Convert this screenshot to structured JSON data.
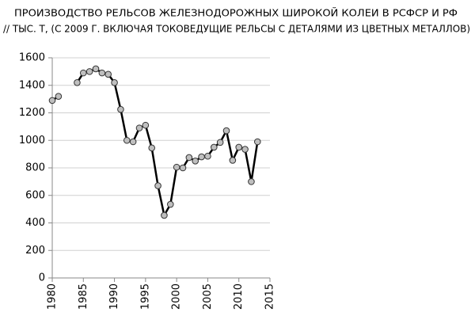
{
  "chart_data": {
    "type": "line",
    "title": "ПРОИЗВОДСТВО РЕЛЬСОВ ЖЕЛЕЗНОДОРОЖНЫХ ШИРОКОЙ КОЛЕИ В  РСФСР  И  РФ",
    "subtitle": "// ТЫС. Т, (С 2009 Г. ВКЛЮЧАЯ ТОКОВЕДУЩИЕ  РЕЛЬСЫ С ДЕТАЛЯМИ ИЗ ЦВЕТНЫХ МЕТАЛЛОВ)",
    "x": [
      1980,
      1981,
      1982,
      1983,
      1984,
      1985,
      1986,
      1987,
      1988,
      1989,
      1990,
      1991,
      1992,
      1993,
      1994,
      1995,
      1996,
      1997,
      1998,
      1999,
      2000,
      2001,
      2002,
      2003,
      2004,
      2005,
      2006,
      2007,
      2008,
      2009,
      2010,
      2011,
      2012,
      2013
    ],
    "series": [
      {
        "color": "#000000",
        "marker_color": "#bfbfbf",
        "values": [
          1290,
          1320,
          null,
          null,
          1420,
          1490,
          1500,
          1520,
          1490,
          1480,
          1420,
          1225,
          1000,
          990,
          1090,
          1110,
          945,
          670,
          455,
          535,
          805,
          800,
          875,
          850,
          880,
          885,
          950,
          985,
          1070,
          855,
          950,
          935,
          700,
          990
        ]
      }
    ],
    "xlim": [
      1980,
      2015
    ],
    "xticks": [
      1980,
      1985,
      1990,
      1995,
      2000,
      2005,
      2010,
      2015
    ],
    "ylim": [
      0,
      1600
    ],
    "yticks": [
      0,
      200,
      400,
      600,
      800,
      1000,
      1200,
      1400,
      1600
    ],
    "grid": true
  }
}
